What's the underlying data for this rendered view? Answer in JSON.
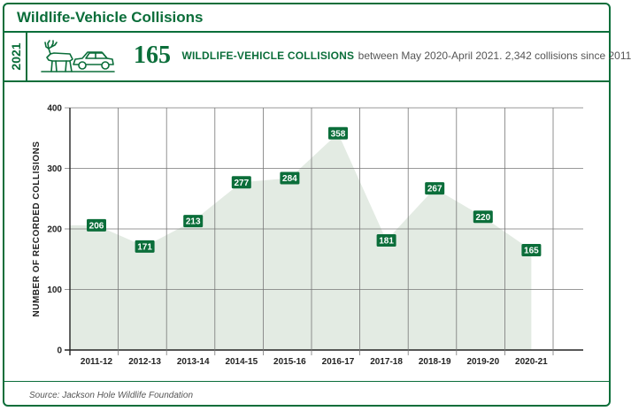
{
  "header": {
    "title": "Wildlife-Vehicle Collisions",
    "year": "2021",
    "icon": "deer-and-car-icon",
    "big_number": "165",
    "label_strong": "WILDLIFE-VEHICLE COLLISIONS",
    "label_rest": "between May 2020-April 2021. 2,342 collisions since 2011"
  },
  "colors": {
    "brand_green": "#0b6e3a",
    "area_fill": "#e3ebe3",
    "grid": "#777777"
  },
  "footer": {
    "source": "Source: Jackson Hole Wildlife Foundation"
  },
  "chart_data": {
    "type": "area",
    "title": "",
    "xlabel": "",
    "ylabel": "NUMBER OF RECORDED COLLISIONS",
    "categories": [
      "2011-12",
      "2012-13",
      "2013-14",
      "2014-15",
      "2015-16",
      "2016-17",
      "2017-18",
      "2018-19",
      "2019-20",
      "2020-21"
    ],
    "values": [
      206,
      171,
      213,
      277,
      284,
      358,
      181,
      267,
      220,
      165
    ],
    "ylim": [
      0,
      400
    ],
    "yticks": [
      0,
      100,
      200,
      300,
      400
    ],
    "grid": true,
    "data_labels": true
  }
}
